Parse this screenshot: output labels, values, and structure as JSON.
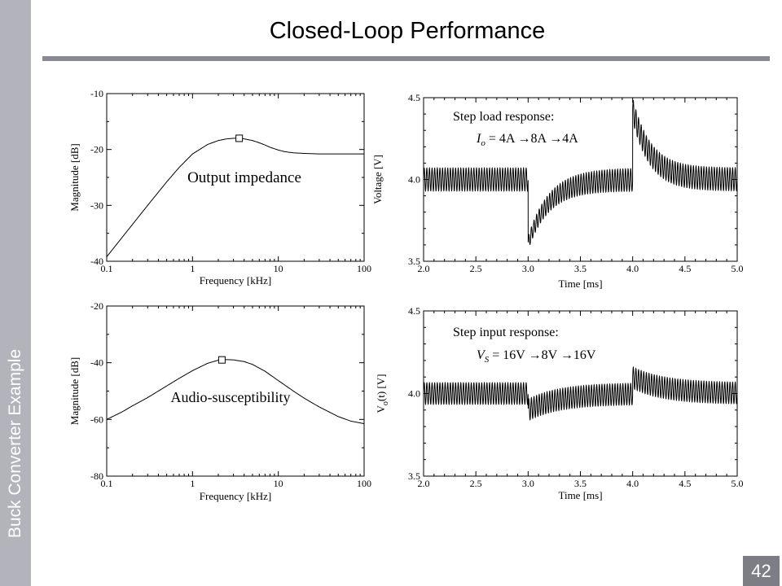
{
  "slide": {
    "title": "Closed-Loop Performance",
    "sidebar_label": "Buck Converter Example",
    "page_number": "42",
    "colors": {
      "sidebar": "#b3b3bb",
      "rule": "#8a8a94",
      "page_box": "#7d7d86"
    }
  },
  "chart_data": [
    {
      "type": "line",
      "label": "Output impedance",
      "xlabel": "Frequency [kHz]",
      "ylabel": "Magnitude [dB]",
      "xscale": "log",
      "xlim": [
        0.1,
        100
      ],
      "ylim": [
        -40,
        -10
      ],
      "xticks": [
        "0.1",
        "1",
        "10",
        "100"
      ],
      "yticks": [
        "-10",
        "-20",
        "-30",
        "-40"
      ],
      "x": [
        0.1,
        0.15,
        0.2,
        0.3,
        0.5,
        0.7,
        1,
        1.5,
        2,
        2.5,
        3,
        3.5,
        4,
        5,
        6,
        7,
        8,
        10,
        12,
        15,
        20,
        30,
        40,
        50,
        70,
        100
      ],
      "y": [
        -39.2,
        -35.8,
        -33.4,
        -30.0,
        -25.8,
        -23.2,
        -20.8,
        -19.1,
        -18.4,
        -18.1,
        -18.0,
        -18.0,
        -18.1,
        -18.4,
        -18.8,
        -19.2,
        -19.6,
        -20.1,
        -20.4,
        -20.6,
        -20.7,
        -20.8,
        -20.8,
        -20.8,
        -20.8,
        -20.8
      ],
      "marker": {
        "x": 3.5,
        "y": -18.0,
        "shape": "square"
      }
    },
    {
      "type": "line",
      "label": "Step load response:",
      "annotation": {
        "var": "I",
        "sub": "o",
        "expr": "= 4A →8A →4A"
      },
      "xlabel": "Time [ms]",
      "ylabel": "Voltage [V]",
      "xlim": [
        2.0,
        5.0
      ],
      "ylim": [
        3.5,
        4.5
      ],
      "xticks": [
        "2.0",
        "2.5",
        "3.0",
        "3.5",
        "4.0",
        "4.5",
        "5.0"
      ],
      "yticks": [
        "4.5",
        "4.0",
        "3.5"
      ],
      "signal": {
        "dc": 4.0,
        "ripple": 0.07,
        "ripple_cycles_per_ms": 40,
        "steps": [
          {
            "t": 3.0,
            "jump": -0.39,
            "tau_ms": 0.2
          },
          {
            "t": 4.0,
            "jump": 0.43,
            "tau_ms": 0.17
          }
        ]
      }
    },
    {
      "type": "line",
      "label": "Audio-susceptibility",
      "xlabel": "Frequency [kHz]",
      "ylabel": "Magnitude [dB]",
      "xscale": "log",
      "xlim": [
        0.1,
        100
      ],
      "ylim": [
        -80,
        -20
      ],
      "xticks": [
        "0.1",
        "1",
        "10",
        "100"
      ],
      "yticks": [
        "-20",
        "-40",
        "-60",
        "-80"
      ],
      "x": [
        0.1,
        0.15,
        0.2,
        0.3,
        0.5,
        0.7,
        1,
        1.5,
        2,
        2.5,
        3,
        4,
        5,
        7,
        10,
        15,
        20,
        30,
        50,
        70,
        100
      ],
      "y": [
        -60.0,
        -57.4,
        -55.2,
        -52.3,
        -48.2,
        -45.5,
        -42.8,
        -40.2,
        -39.1,
        -38.9,
        -39.0,
        -39.6,
        -40.6,
        -43.0,
        -46.3,
        -50.0,
        -52.5,
        -55.6,
        -59.0,
        -60.6,
        -61.5
      ],
      "marker": {
        "x": 2.2,
        "y": -39.0,
        "shape": "square"
      }
    },
    {
      "type": "line",
      "label": "Step input response:",
      "annotation": {
        "var": "V",
        "sub": "S",
        "expr": "= 16V →8V →16V"
      },
      "xlabel": "Time [ms]",
      "ylabel": "V",
      "ylabel_sub": "o",
      "ylabel_rest": "(t) [V]",
      "xlim": [
        2.0,
        5.0
      ],
      "ylim": [
        3.5,
        4.5
      ],
      "xticks": [
        "2.0",
        "2.5",
        "3.0",
        "3.5",
        "4.0",
        "4.5",
        "5.0"
      ],
      "yticks": [
        "4.5",
        "4.0",
        "3.5"
      ],
      "signal": {
        "dc": 4.0,
        "ripple": 0.065,
        "ripple_cycles_per_ms": 40,
        "steps": [
          {
            "t": 3.0,
            "jump": -0.1,
            "tau_ms": 0.3
          },
          {
            "t": 4.0,
            "jump": 0.1,
            "tau_ms": 0.3
          }
        ]
      }
    }
  ]
}
